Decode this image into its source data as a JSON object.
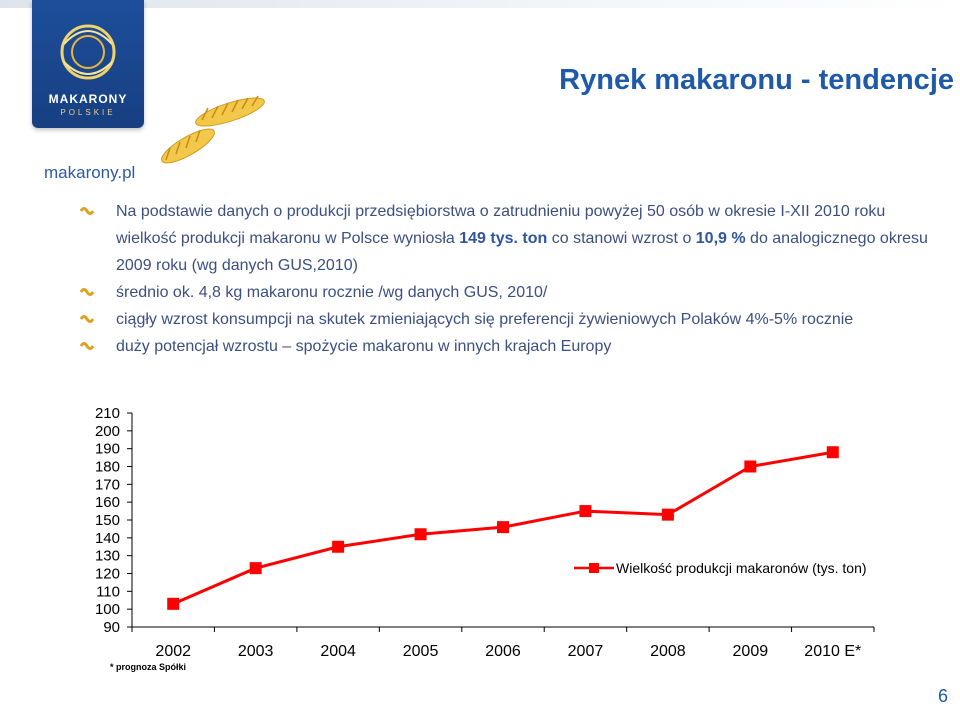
{
  "header": {
    "title": "Rynek makaronu - tendencje",
    "logo_brand": "MAKARONY",
    "logo_sub": "POLSKIE",
    "site": "makarony.pl"
  },
  "bullets": [
    {
      "parts": [
        {
          "text": "Na podstawie danych o produkcji przedsiębiorstwa o zatrudnieniu powyżej 50 osób w okresie I-XII 2010 roku wielkość produkcji makaronu w Polsce wyniosła ",
          "bold": false
        },
        {
          "text": "149 tys. ton",
          "bold": true
        },
        {
          "text": " co stanowi wzrost o ",
          "bold": false
        },
        {
          "text": "10,9 %",
          "bold": true
        },
        {
          "text": " do analogicznego  okresu 2009 roku (wg danych GUS,2010)",
          "bold": false
        }
      ]
    },
    {
      "parts": [
        {
          "text": "średnio ok. 4,8 kg makaronu rocznie /wg danych GUS, 2010/",
          "bold": false
        }
      ]
    },
    {
      "parts": [
        {
          "text": "ciągły wzrost konsumpcji na skutek zmieniających się preferencji żywieniowych Polaków 4%-5% rocznie",
          "bold": false
        }
      ]
    },
    {
      "parts": [
        {
          "text": "duży potencjał wzrostu – spożycie makaronu w innych krajach Europy",
          "bold": false
        }
      ]
    }
  ],
  "chart_data": {
    "type": "line",
    "categories": [
      "2002",
      "2003",
      "2004",
      "2005",
      "2006",
      "2007",
      "2008",
      "2009",
      "2010 E*"
    ],
    "series": [
      {
        "name": "Wielkość produkcji makaronów (tys. ton)",
        "values": [
          103,
          123,
          135,
          142,
          146,
          155,
          153,
          180,
          188
        ],
        "color": "#ff0000"
      }
    ],
    "yticks": [
      "210",
      "200",
      "190",
      "180",
      "170",
      "160",
      "150",
      "140",
      "130",
      "120",
      "110",
      "100",
      "90"
    ],
    "ylim": [
      90,
      210
    ],
    "legend_position": "right",
    "footnote": "* prognoza Spółki"
  },
  "page_number": "6",
  "colors": {
    "title": "#1f5aa8",
    "bullet_text": "#3c4f82",
    "series": "#ff0000",
    "logo_bg": "#1e4e9a"
  }
}
